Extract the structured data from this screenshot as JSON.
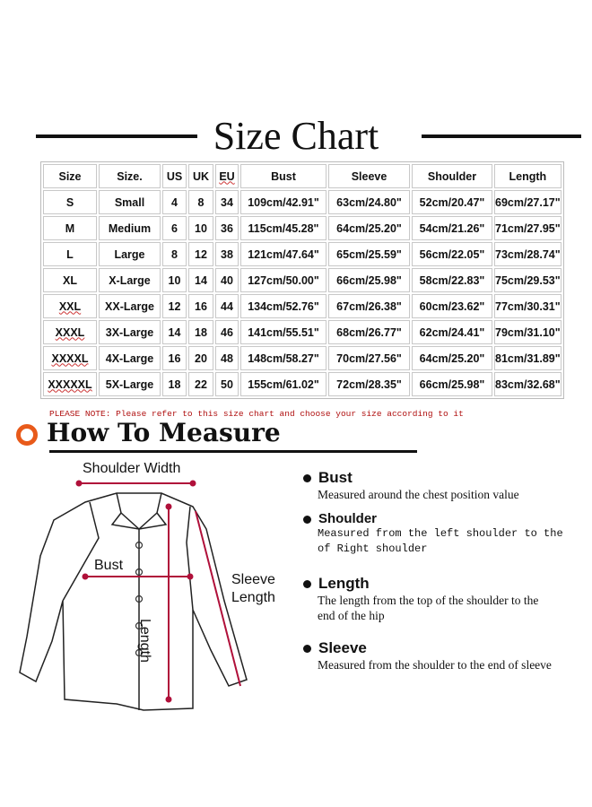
{
  "title": "Size Chart",
  "table": {
    "headers": [
      "Size",
      "Size.",
      "US",
      "UK",
      "EU",
      "Bust",
      "Sleeve",
      "Shoulder",
      "Length"
    ],
    "rows": [
      [
        "S",
        "Small",
        "4",
        "8",
        "34",
        "109cm/42.91\"",
        "63cm/24.80\"",
        "52cm/20.47\"",
        "69cm/27.17\""
      ],
      [
        "M",
        "Medium",
        "6",
        "10",
        "36",
        "115cm/45.28\"",
        "64cm/25.20\"",
        "54cm/21.26\"",
        "71cm/27.95\""
      ],
      [
        "L",
        "Large",
        "8",
        "12",
        "38",
        "121cm/47.64\"",
        "65cm/25.59\"",
        "56cm/22.05\"",
        "73cm/28.74\""
      ],
      [
        "XL",
        "X-Large",
        "10",
        "14",
        "40",
        "127cm/50.00\"",
        "66cm/25.98\"",
        "58cm/22.83\"",
        "75cm/29.53\""
      ],
      [
        "XXL",
        "XX-Large",
        "12",
        "16",
        "44",
        "134cm/52.76\"",
        "67cm/26.38\"",
        "60cm/23.62\"",
        "77cm/30.31\""
      ],
      [
        "XXXL",
        "3X-Large",
        "14",
        "18",
        "46",
        "141cm/55.51\"",
        "68cm/26.77\"",
        "62cm/24.41\"",
        "79cm/31.10\""
      ],
      [
        "XXXXL",
        "4X-Large",
        "16",
        "20",
        "48",
        "148cm/58.27\"",
        "70cm/27.56\"",
        "64cm/25.20\"",
        "81cm/31.89\""
      ],
      [
        "XXXXXL",
        "5X-Large",
        "18",
        "22",
        "50",
        "155cm/61.02\"",
        "72cm/28.35\"",
        "66cm/25.98\"",
        "83cm/32.68\""
      ]
    ]
  },
  "note": "PLEASE NOTE: Please refer to this size chart and choose your size according to it",
  "how_to_measure": "How To Measure",
  "diagram": {
    "shoulder_width": "Shoulder Width",
    "bust": "Bust",
    "sleeve": "Sleeve",
    "sleeve2": "Length",
    "length": "Length"
  },
  "definitions": [
    {
      "term": "Bust",
      "desc": "Measured around the chest position value"
    },
    {
      "term": "Shoulder",
      "desc": "Measured from the left shoulder to the of Right shoulder"
    },
    {
      "term": "Length",
      "desc": "The length from the top of the shoulder to the end of the hip"
    },
    {
      "term": "Sleeve",
      "desc": "Measured from the shoulder to the end of sleeve"
    }
  ],
  "colors": {
    "accent": "#e85a1a",
    "measure_line": "#b0103a",
    "note": "#b01010"
  }
}
